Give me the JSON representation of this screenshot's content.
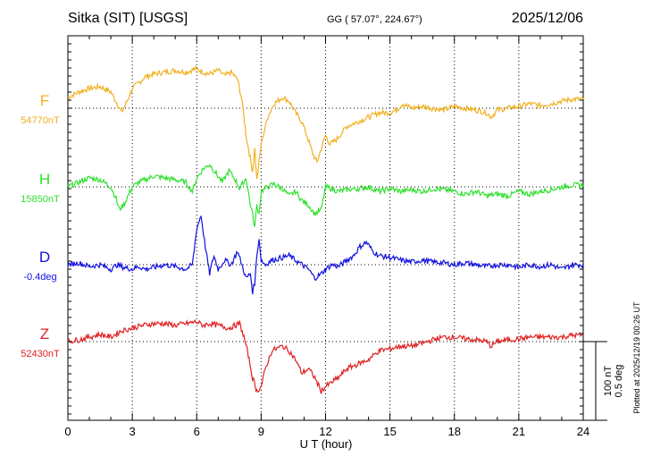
{
  "header": {
    "station": "Sitka (SIT)  [USGS]",
    "coords": "GG ( 57.07°, 224.67°)",
    "date": "2025/12/06"
  },
  "footer": {
    "xlabel": "U T (hour)",
    "plotted": "Plotted at 2025/12/19 00:26 UT"
  },
  "scale": {
    "nt_label": "100 nT",
    "deg_label": "0.5 deg"
  },
  "chart_data": {
    "type": "line",
    "title": "Sitka (SIT)  [USGS]",
    "xlabel": "U T (hour)",
    "ylabel": "",
    "xlim": [
      0,
      24
    ],
    "x_ticks": [
      0,
      3,
      6,
      9,
      12,
      15,
      18,
      21,
      24
    ],
    "x_tick_labels": [
      "0",
      "3",
      "6",
      "9",
      "12",
      "15",
      "18",
      "21",
      "24"
    ],
    "grid": true,
    "scale_note": "100 nT / 0.5 deg per scale bar",
    "series": [
      {
        "name": "F",
        "baseline_label": "54770nT",
        "baseline": 54770,
        "unit": "nT",
        "color": "#f0b020",
        "x": [
          0,
          0.5,
          1,
          1.5,
          2,
          2.3,
          2.5,
          2.8,
          3,
          3.3,
          3.6,
          4,
          4.5,
          5,
          5.5,
          6,
          6.3,
          6.6,
          7,
          7.3,
          7.6,
          7.9,
          8.1,
          8.3,
          8.45,
          8.6,
          8.7,
          8.8,
          8.9,
          9,
          9.1,
          9.3,
          9.6,
          10,
          10.3,
          10.6,
          10.9,
          11.2,
          11.4,
          11.6,
          11.8,
          12,
          12.2,
          12.5,
          13,
          13.5,
          14,
          14.5,
          15,
          15.3,
          15.6,
          16,
          16.5,
          17,
          17.5,
          18,
          18.5,
          19,
          19.5,
          19.7,
          20,
          20.5,
          21,
          21.5,
          22,
          22.5,
          23,
          23.5,
          24
        ],
        "values": [
          12,
          18,
          22,
          24,
          18,
          5,
          -5,
          10,
          22,
          28,
          35,
          38,
          40,
          42,
          40,
          44,
          40,
          38,
          42,
          36,
          40,
          32,
          10,
          -30,
          -50,
          -70,
          -45,
          -80,
          -60,
          -40,
          -30,
          -10,
          5,
          12,
          8,
          -5,
          -15,
          -35,
          -50,
          -60,
          -45,
          -30,
          -40,
          -35,
          -20,
          -15,
          -10,
          -5,
          -5,
          -2,
          5,
          0,
          2,
          0,
          -2,
          2,
          0,
          -2,
          -5,
          -10,
          -2,
          0,
          2,
          5,
          3,
          5,
          8,
          10,
          10
        ]
      },
      {
        "name": "H",
        "baseline_label": "15850nT",
        "baseline": 15850,
        "unit": "nT",
        "color": "#30e030",
        "x": [
          0,
          0.5,
          1,
          1.5,
          2,
          2.2,
          2.4,
          2.6,
          2.8,
          3,
          3.3,
          3.6,
          4,
          4.5,
          5,
          5.5,
          5.8,
          6,
          6.3,
          6.6,
          6.9,
          7.2,
          7.5,
          7.8,
          8,
          8.3,
          8.5,
          8.6,
          8.7,
          8.8,
          8.9,
          9,
          9.3,
          9.6,
          10,
          10.3,
          10.6,
          10.9,
          11.2,
          11.5,
          11.8,
          12,
          12.3,
          12.6,
          13,
          13.5,
          14,
          14.5,
          15,
          15.5,
          16,
          16.5,
          17,
          17.5,
          18,
          18.5,
          19,
          19.5,
          20,
          20.5,
          21,
          21.5,
          22,
          22.5,
          23,
          23.5,
          24
        ],
        "values": [
          0,
          5,
          10,
          8,
          0,
          -10,
          -25,
          -20,
          -10,
          0,
          5,
          8,
          12,
          10,
          8,
          5,
          -5,
          10,
          20,
          25,
          15,
          5,
          18,
          8,
          -2,
          10,
          -20,
          -30,
          -45,
          -20,
          -30,
          -5,
          0,
          3,
          -2,
          -10,
          -5,
          -15,
          -20,
          -30,
          -25,
          0,
          -2,
          -5,
          -3,
          -2,
          0,
          -5,
          -2,
          -5,
          -3,
          -5,
          -2,
          -3,
          -5,
          -8,
          -5,
          -10,
          -8,
          -10,
          -5,
          -8,
          -5,
          -3,
          0,
          2,
          2
        ]
      },
      {
        "name": "D",
        "baseline_label": "-0.4deg",
        "baseline": -0.4,
        "unit": "deg",
        "color": "#1010e0",
        "x": [
          0,
          0.5,
          1,
          1.5,
          2,
          2.3,
          2.6,
          3,
          3.3,
          3.6,
          4,
          4.5,
          5,
          5.5,
          5.8,
          6,
          6.2,
          6.4,
          6.6,
          6.8,
          7,
          7.3,
          7.6,
          7.9,
          8.1,
          8.3,
          8.5,
          8.6,
          8.7,
          8.8,
          8.9,
          9,
          9.2,
          9.5,
          10,
          10.3,
          10.6,
          10.9,
          11.2,
          11.5,
          11.8,
          12,
          12.3,
          12.6,
          13,
          13.3,
          13.6,
          13.9,
          14.2,
          14.5,
          15,
          15.5,
          16,
          16.5,
          17,
          17.5,
          18,
          18.5,
          19,
          19.5,
          20,
          20.5,
          21,
          21.5,
          22,
          22.5,
          23,
          23.5,
          24
        ],
        "values": [
          0,
          2,
          -2,
          0,
          -5,
          0,
          -3,
          -5,
          -2,
          -5,
          -3,
          0,
          -2,
          -5,
          0,
          40,
          55,
          20,
          -10,
          10,
          -5,
          5,
          0,
          15,
          0,
          -15,
          -10,
          -30,
          -20,
          10,
          30,
          5,
          0,
          5,
          8,
          10,
          5,
          0,
          -5,
          -15,
          -10,
          -5,
          0,
          -2,
          5,
          10,
          20,
          25,
          15,
          10,
          8,
          5,
          3,
          5,
          3,
          2,
          0,
          2,
          0,
          -2,
          0,
          0,
          -3,
          0,
          -2,
          0,
          -5,
          0,
          0
        ]
      },
      {
        "name": "Z",
        "baseline_label": "52430nT",
        "baseline": 52430,
        "unit": "nT",
        "color": "#e02020",
        "x": [
          0,
          0.5,
          1,
          1.5,
          2,
          2.5,
          3,
          3.5,
          4,
          4.5,
          5,
          5.5,
          6,
          6.3,
          6.6,
          7,
          7.5,
          8,
          8.2,
          8.4,
          8.6,
          8.8,
          9,
          9.2,
          9.5,
          10,
          10.3,
          10.6,
          10.9,
          11.2,
          11.5,
          11.8,
          12,
          12.3,
          12.6,
          13,
          13.5,
          14,
          14.5,
          15,
          15.5,
          16,
          16.5,
          17,
          17.5,
          18,
          18.5,
          19,
          19.5,
          19.7,
          20,
          20.5,
          21,
          21.5,
          22,
          22.5,
          23,
          23.5,
          24
        ],
        "values": [
          0,
          2,
          5,
          8,
          5,
          12,
          15,
          18,
          20,
          20,
          18,
          20,
          22,
          18,
          20,
          18,
          15,
          20,
          5,
          -15,
          -40,
          -55,
          -50,
          -30,
          -10,
          -5,
          -10,
          -20,
          -35,
          -30,
          -40,
          -55,
          -50,
          -45,
          -40,
          -30,
          -25,
          -20,
          -10,
          -8,
          -5,
          -5,
          -2,
          2,
          5,
          5,
          3,
          2,
          0,
          -5,
          0,
          2,
          3,
          5,
          5,
          5,
          5,
          7,
          7
        ]
      }
    ]
  }
}
